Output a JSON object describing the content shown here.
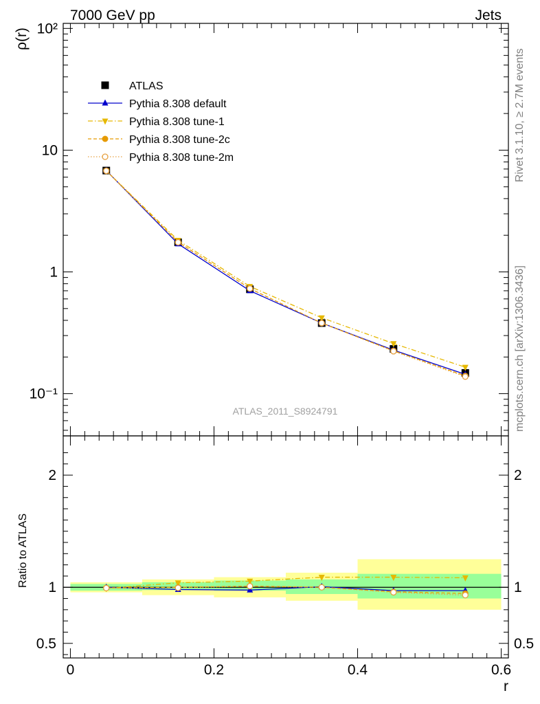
{
  "header": {
    "left_title": "7000 GeV pp",
    "right_title": "Jets"
  },
  "side_labels": {
    "rivet": "Rivet 3.1.10, ≥ 2.7M events",
    "mcplots": "mcplots.cern.ch [arXiv:1306.3436]"
  },
  "chart_data": [
    {
      "type": "line",
      "panel": "main",
      "ylabel": "ρ(r)",
      "yscale": "log",
      "ylim": [
        0.045,
        110
      ],
      "xlim": [
        -0.01,
        0.61
      ],
      "y_tick_labels": [
        "10⁻¹",
        "1",
        "10",
        "10²"
      ],
      "annotation": "ATLAS_2011_S8924791",
      "x": [
        0.05,
        0.15,
        0.25,
        0.35,
        0.45,
        0.55
      ],
      "series": [
        {
          "name": "ATLAS",
          "values": [
            6.8,
            1.75,
            0.72,
            0.38,
            0.233,
            0.148
          ],
          "color": "#000000",
          "marker": "square",
          "line": "none"
        },
        {
          "name": "Pythia 8.308 default",
          "values": [
            6.8,
            1.7,
            0.7,
            0.38,
            0.228,
            0.144
          ],
          "color": "#0000cc",
          "marker": "triangle-up",
          "line": "solid"
        },
        {
          "name": "Pythia 8.308 tune-1",
          "values": [
            6.75,
            1.82,
            0.76,
            0.42,
            0.258,
            0.165
          ],
          "color": "#e6b800",
          "marker": "triangle-down",
          "line": "dashdot"
        },
        {
          "name": "Pythia 8.308 tune-2c",
          "values": [
            6.78,
            1.76,
            0.73,
            0.38,
            0.225,
            0.14
          ],
          "color": "#e69a00",
          "marker": "circle",
          "line": "dashed"
        },
        {
          "name": "Pythia 8.308 tune-2m",
          "values": [
            6.76,
            1.75,
            0.73,
            0.38,
            0.223,
            0.138
          ],
          "color": "#e6a040",
          "marker": "circle-open",
          "line": "dotted"
        }
      ]
    },
    {
      "type": "line",
      "panel": "ratio",
      "xlabel": "r",
      "ylabel": "Ratio to ATLAS",
      "ylim": [
        0.37,
        2.35
      ],
      "xlim": [
        -0.01,
        0.61
      ],
      "y_ticks": [
        0.5,
        1,
        2
      ],
      "y_tick_labels": [
        "0.5",
        "1",
        "2"
      ],
      "x_ticks": [
        0,
        0.2,
        0.4,
        0.6
      ],
      "x_tick_labels": [
        "0",
        "0.2",
        "0.4",
        "0.6"
      ],
      "bands": [
        {
          "x0": 0.0,
          "x1": 0.1,
          "green": [
            0.97,
            1.03
          ],
          "yellow": [
            0.955,
            1.045
          ]
        },
        {
          "x0": 0.1,
          "x1": 0.2,
          "green": [
            0.975,
            1.045
          ],
          "yellow": [
            0.93,
            1.07
          ]
        },
        {
          "x0": 0.2,
          "x1": 0.3,
          "green": [
            0.97,
            1.06
          ],
          "yellow": [
            0.91,
            1.09
          ]
        },
        {
          "x0": 0.3,
          "x1": 0.4,
          "green": [
            0.94,
            1.07
          ],
          "yellow": [
            0.88,
            1.13
          ]
        },
        {
          "x0": 0.4,
          "x1": 0.6,
          "green": [
            0.9,
            1.12
          ],
          "yellow": [
            0.8,
            1.25
          ]
        }
      ],
      "x": [
        0.05,
        0.15,
        0.25,
        0.35,
        0.45,
        0.55
      ],
      "series": [
        {
          "name": "Pythia 8.308 default",
          "values": [
            1.0,
            0.98,
            0.975,
            1.005,
            0.97,
            0.97
          ]
        },
        {
          "name": "Pythia 8.308 tune-1",
          "values": [
            0.99,
            1.04,
            1.055,
            1.09,
            1.09,
            1.085
          ]
        },
        {
          "name": "Pythia 8.308 tune-2c",
          "values": [
            0.995,
            1.0,
            1.01,
            1.0,
            0.96,
            0.945
          ]
        },
        {
          "name": "Pythia 8.308 tune-2m",
          "values": [
            0.993,
            0.995,
            1.01,
            1.0,
            0.955,
            0.93
          ]
        }
      ]
    }
  ]
}
